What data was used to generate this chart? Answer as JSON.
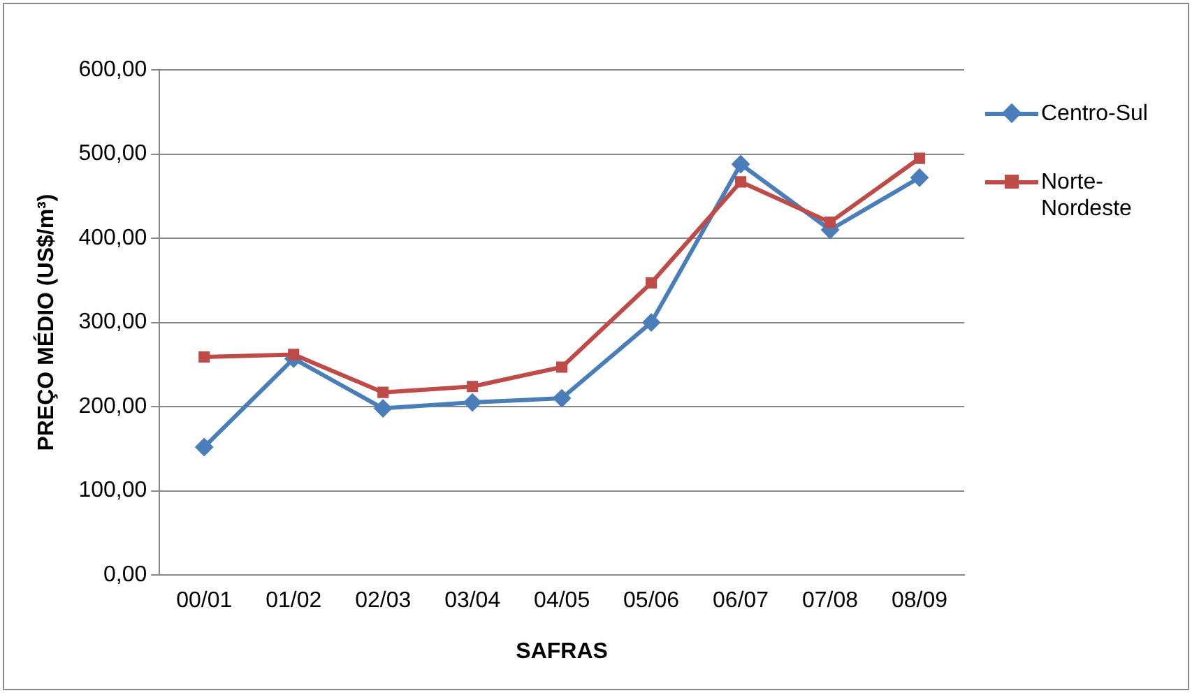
{
  "chart_data": {
    "type": "line",
    "xlabel": "SAFRAS",
    "ylabel": "PREÇO MÉDIO (US$/m³)",
    "categories": [
      "00/01",
      "01/02",
      "02/03",
      "03/04",
      "04/05",
      "05/06",
      "06/07",
      "07/08",
      "08/09"
    ],
    "series": [
      {
        "name": "Centro-Sul",
        "color": "#4a7ebb",
        "marker": "diamond",
        "values": [
          152,
          257,
          198,
          205,
          210,
          300,
          488,
          410,
          472
        ]
      },
      {
        "name": "Norte-Nordeste",
        "color": "#be4b48",
        "marker": "square",
        "values": [
          259,
          262,
          217,
          224,
          247,
          347,
          467,
          419,
          495
        ]
      }
    ],
    "ylim": [
      0,
      600
    ],
    "yticks": [
      {
        "value": 0,
        "label": "0,00"
      },
      {
        "value": 100,
        "label": "100,00"
      },
      {
        "value": 200,
        "label": "200,00"
      },
      {
        "value": 300,
        "label": "300,00"
      },
      {
        "value": 400,
        "label": "400,00"
      },
      {
        "value": 500,
        "label": "500,00"
      },
      {
        "value": 600,
        "label": "600,00"
      }
    ],
    "grid": "y",
    "legend": "right"
  }
}
